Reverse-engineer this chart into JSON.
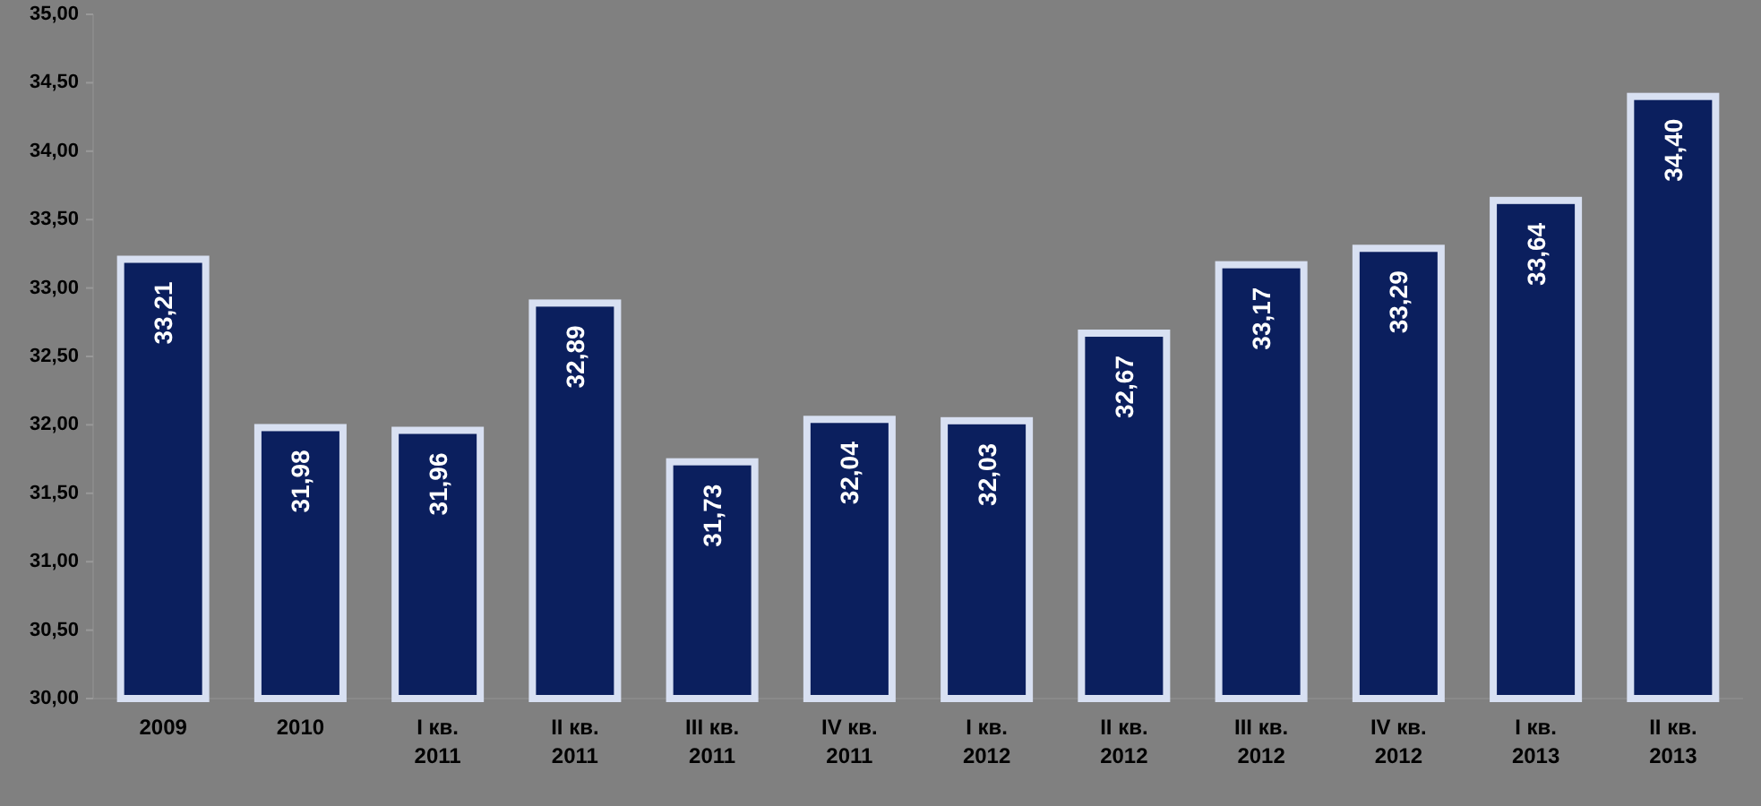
{
  "chart_data": {
    "type": "bar",
    "categories": [
      "2009",
      "2010",
      "I кв. 2011",
      "II кв. 2011",
      "III кв. 2011",
      "IV кв. 2011",
      "I кв. 2012",
      "II кв. 2012",
      "III кв. 2012",
      "IV кв. 2012",
      "I кв. 2013",
      "II кв. 2013"
    ],
    "values": [
      33.21,
      31.98,
      31.96,
      32.89,
      31.73,
      32.04,
      32.03,
      32.67,
      33.17,
      33.29,
      33.64,
      34.4
    ],
    "value_labels": [
      "33,21",
      "31,98",
      "31,96",
      "32,89",
      "31,73",
      "32,04",
      "32,03",
      "32,67",
      "33,17",
      "33,29",
      "33,64",
      "34,40"
    ],
    "color": "#0b1f5e",
    "ylim": [
      30,
      35
    ],
    "yticks": [
      {
        "value": 30,
        "label": "30,00"
      },
      {
        "value": 30.5,
        "label": "30,50"
      },
      {
        "value": 31,
        "label": "31,00"
      },
      {
        "value": 31.5,
        "label": "31,50"
      },
      {
        "value": 32,
        "label": "32,00"
      },
      {
        "value": 32.5,
        "label": "32,50"
      },
      {
        "value": 33,
        "label": "33,00"
      },
      {
        "value": 33.5,
        "label": "33,50"
      },
      {
        "value": 34,
        "label": "34,00"
      },
      {
        "value": 34.5,
        "label": "34,50"
      },
      {
        "value": 35,
        "label": "35,00"
      }
    ]
  }
}
